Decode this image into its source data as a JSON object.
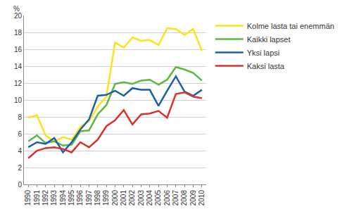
{
  "chart_data": {
    "type": "line",
    "ylabel": "%",
    "categories": [
      "1990",
      "1991",
      "1992",
      "1993",
      "1994",
      "1995",
      "1996",
      "1997",
      "1998",
      "1999",
      "2000",
      "2001",
      "2002",
      "2003",
      "2004",
      "2005",
      "2006",
      "2007",
      "2008",
      "2009",
      "2010"
    ],
    "series": [
      {
        "name": "Kolme lasta tai enemmän",
        "color": "#ffe11a",
        "values": [
          7.9,
          8.2,
          5.8,
          5.1,
          5.6,
          5.3,
          6.8,
          7.5,
          9.2,
          10.4,
          16.8,
          16.2,
          17.4,
          17.0,
          17.1,
          16.5,
          18.5,
          18.4,
          17.7,
          18.4,
          15.8
        ]
      },
      {
        "name": "Kaikki lapset",
        "color": "#5cb843",
        "values": [
          5.1,
          5.8,
          4.9,
          5.1,
          4.6,
          4.7,
          6.3,
          6.4,
          8.3,
          9.4,
          11.9,
          12.1,
          11.9,
          12.3,
          12.4,
          11.8,
          12.4,
          13.9,
          13.6,
          13.2,
          12.3
        ]
      },
      {
        "name": "Yksi lapsi",
        "color": "#1f5ea8",
        "values": [
          4.4,
          5.0,
          4.8,
          5.5,
          3.8,
          5.0,
          6.5,
          7.7,
          10.5,
          10.6,
          11.1,
          10.5,
          11.4,
          11.2,
          11.2,
          9.3,
          11.1,
          12.8,
          11.0,
          10.5,
          11.2
        ]
      },
      {
        "name": "Kaksi lasta",
        "color": "#d9312b",
        "values": [
          3.1,
          4.0,
          4.3,
          4.4,
          4.2,
          3.8,
          5.0,
          4.4,
          5.3,
          6.9,
          7.6,
          8.8,
          7.1,
          8.3,
          8.4,
          8.7,
          7.9,
          10.7,
          10.9,
          10.4,
          10.2
        ]
      }
    ],
    "ylim": [
      0,
      20
    ],
    "yticks": [
      0,
      2,
      4,
      6,
      8,
      10,
      12,
      14,
      16,
      18,
      20
    ],
    "grid": true,
    "legend": "right"
  }
}
